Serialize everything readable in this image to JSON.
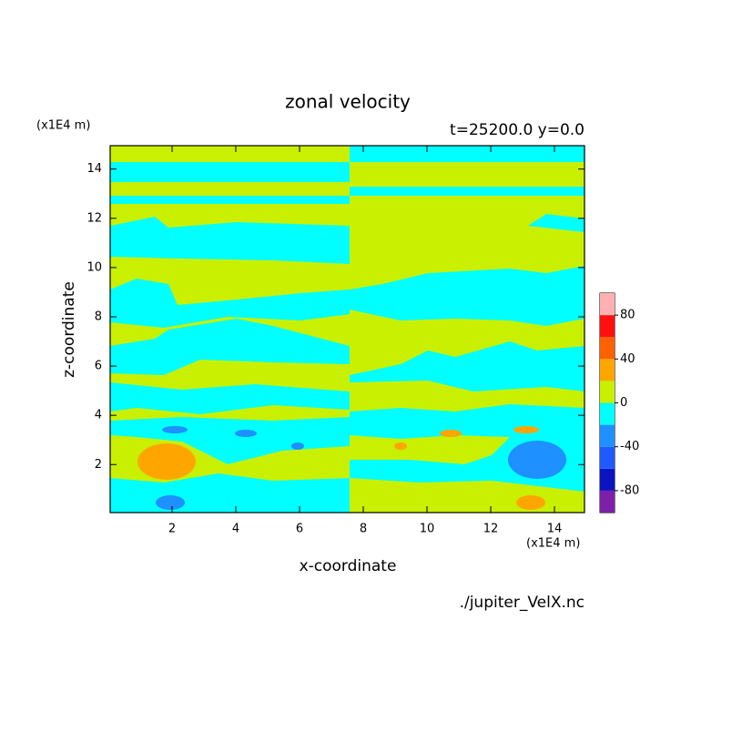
{
  "chart_data": {
    "type": "contour",
    "title": "zonal velocity",
    "subtitle": "t=25200.0 y=0.0",
    "x_label": "x-coordinate",
    "y_label": "z-coordinate",
    "x_unit": "(x1E4 m)",
    "y_unit": "(x1E4 m)",
    "source": "./jupiter_VelX.nc",
    "xlim": [
      0.05,
      14.95
    ],
    "ylim": [
      0.05,
      14.95
    ],
    "xticks": [
      2,
      4,
      6,
      8,
      10,
      12,
      14
    ],
    "yticks": [
      2,
      4,
      6,
      8,
      10,
      12,
      14
    ],
    "colorbar": {
      "levels": [
        -100,
        -80,
        -60,
        -40,
        -20,
        0,
        20,
        40,
        60,
        80,
        100
      ],
      "colors": [
        "#7d1fa8",
        "#0a14c0",
        "#1e5aff",
        "#1e90ff",
        "#00ffff",
        "#c8f000",
        "#ffa500",
        "#ff6000",
        "#ff1010",
        "#ffb0b0"
      ],
      "ticks": [
        -80,
        -40,
        0,
        40,
        80
      ]
    }
  }
}
